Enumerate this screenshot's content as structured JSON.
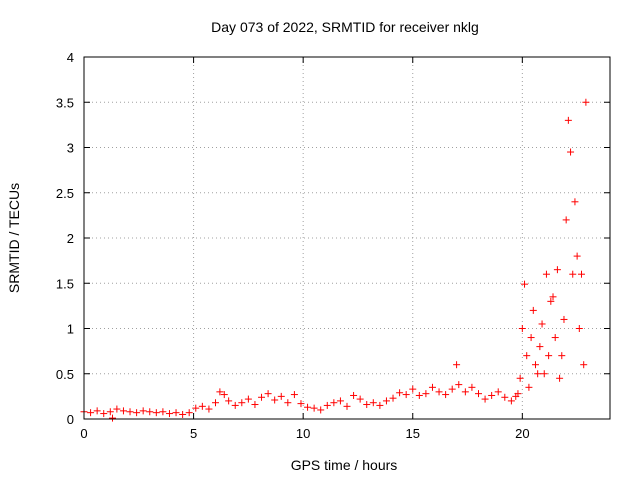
{
  "chart_data": {
    "type": "scatter",
    "title": "Day 073 of 2022, SRMTID for receiver nklg",
    "xlabel": "GPS time / hours",
    "ylabel": "SRMTID / TECUs",
    "xlim": [
      0,
      24
    ],
    "ylim": [
      0,
      4
    ],
    "xticks": [
      0,
      5,
      10,
      15,
      20
    ],
    "yticks": [
      0,
      0.5,
      1,
      1.5,
      2,
      2.5,
      3,
      3.5,
      4
    ],
    "xtick_labels": [
      "0",
      "5",
      "10",
      "15",
      "20"
    ],
    "ytick_labels": [
      "0",
      "0.5",
      "1",
      "1.5",
      "2",
      "2.5",
      "3",
      "3.5",
      "4"
    ],
    "grid": true,
    "marker": "+",
    "color": "#ff0000",
    "series": [
      {
        "name": "SRMTID",
        "x": [
          0.0,
          0.3,
          0.6,
          0.9,
          1.2,
          1.3,
          1.5,
          1.8,
          2.1,
          2.4,
          2.7,
          3.0,
          3.3,
          3.6,
          3.9,
          4.2,
          4.5,
          4.8,
          5.1,
          5.4,
          5.7,
          6.0,
          6.2,
          6.4,
          6.6,
          6.9,
          7.2,
          7.5,
          7.8,
          8.1,
          8.4,
          8.7,
          9.0,
          9.3,
          9.6,
          9.9,
          10.2,
          10.5,
          10.8,
          11.1,
          11.4,
          11.7,
          12.0,
          12.3,
          12.6,
          12.9,
          13.2,
          13.5,
          13.8,
          14.1,
          14.4,
          14.7,
          15.0,
          15.3,
          15.6,
          15.9,
          16.2,
          16.5,
          16.8,
          17.0,
          17.1,
          17.4,
          17.7,
          18.0,
          18.3,
          18.6,
          18.9,
          19.2,
          19.5,
          19.7,
          19.8,
          19.9,
          20.0,
          20.1,
          20.2,
          20.3,
          20.4,
          20.5,
          20.6,
          20.7,
          20.8,
          20.9,
          21.0,
          21.1,
          21.2,
          21.3,
          21.4,
          21.5,
          21.6,
          21.7,
          21.8,
          21.9,
          22.0,
          22.1,
          22.2,
          22.3,
          22.4,
          22.5,
          22.6,
          22.7,
          22.8,
          22.9
        ],
        "y": [
          0.08,
          0.07,
          0.09,
          0.06,
          0.08,
          0.01,
          0.11,
          0.09,
          0.08,
          0.07,
          0.09,
          0.08,
          0.07,
          0.08,
          0.06,
          0.07,
          0.05,
          0.07,
          0.12,
          0.14,
          0.11,
          0.18,
          0.3,
          0.27,
          0.2,
          0.15,
          0.18,
          0.22,
          0.16,
          0.24,
          0.28,
          0.21,
          0.25,
          0.18,
          0.27,
          0.17,
          0.13,
          0.12,
          0.1,
          0.15,
          0.18,
          0.2,
          0.14,
          0.26,
          0.22,
          0.16,
          0.18,
          0.15,
          0.2,
          0.23,
          0.29,
          0.27,
          0.33,
          0.26,
          0.28,
          0.35,
          0.3,
          0.27,
          0.33,
          0.6,
          0.38,
          0.3,
          0.35,
          0.28,
          0.22,
          0.26,
          0.3,
          0.24,
          0.2,
          0.25,
          0.28,
          0.45,
          1.0,
          1.49,
          0.7,
          0.35,
          0.9,
          1.2,
          0.6,
          0.5,
          0.8,
          1.05,
          0.5,
          1.6,
          0.7,
          1.3,
          1.35,
          0.9,
          1.65,
          0.45,
          0.7,
          1.1,
          2.2,
          3.3,
          2.95,
          1.6,
          2.4,
          1.8,
          1.0,
          1.6,
          0.6,
          3.5
        ]
      }
    ]
  }
}
